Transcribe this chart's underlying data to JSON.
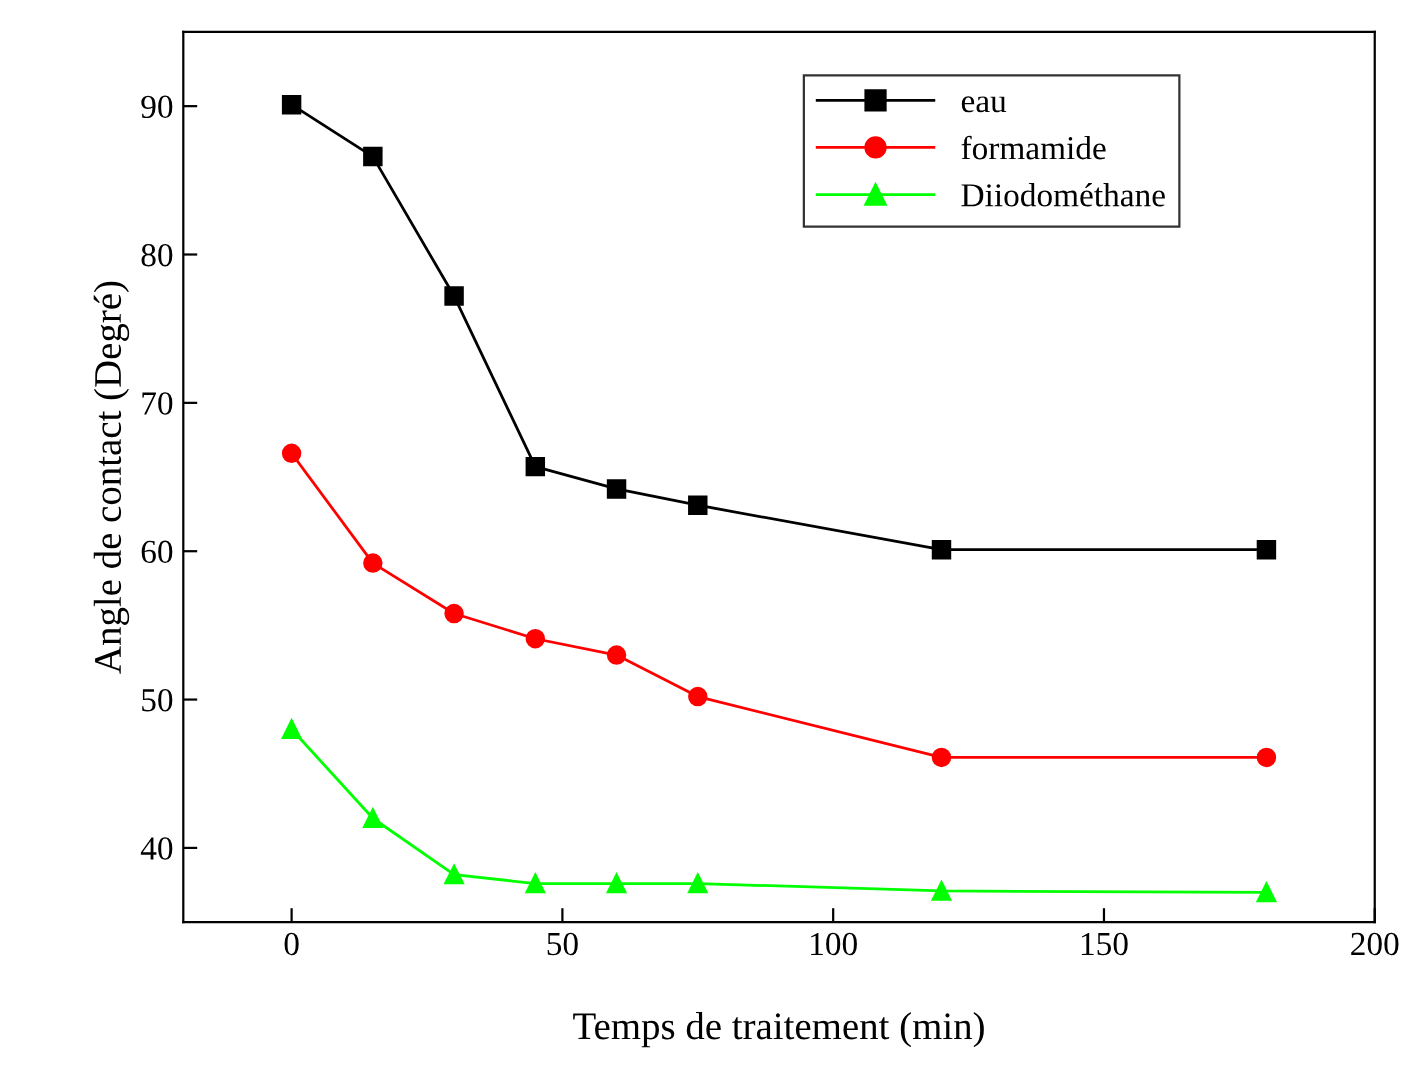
{
  "chart_data": {
    "type": "line",
    "xlabel": "Temps de traitement (min)",
    "ylabel": "Angle de contact (Degré)",
    "x": [
      0,
      15,
      30,
      45,
      60,
      75,
      120,
      180
    ],
    "series": [
      {
        "name": "eau",
        "color": "#000000",
        "marker": "square",
        "values": [
          90.1,
          86.6,
          77.2,
          65.7,
          64.2,
          63.1,
          60.1,
          60.1
        ]
      },
      {
        "name": "formamide",
        "color": "#ff0000",
        "marker": "circle",
        "values": [
          66.6,
          59.2,
          55.8,
          54.1,
          53.0,
          50.2,
          46.1,
          46.1
        ]
      },
      {
        "name": "Diiodométhane",
        "color": "#00ff00",
        "marker": "triangle",
        "values": [
          48.0,
          42.0,
          38.2,
          37.6,
          37.6,
          37.6,
          37.1,
          37.0
        ]
      }
    ],
    "xlim": [
      -20,
      200
    ],
    "xticks": [
      0,
      50,
      100,
      150,
      200
    ],
    "ylim": [
      35,
      95
    ],
    "yticks": [
      40,
      50,
      60,
      70,
      80,
      90
    ],
    "grid": false,
    "legend": "top right",
    "line_style": "solid"
  }
}
